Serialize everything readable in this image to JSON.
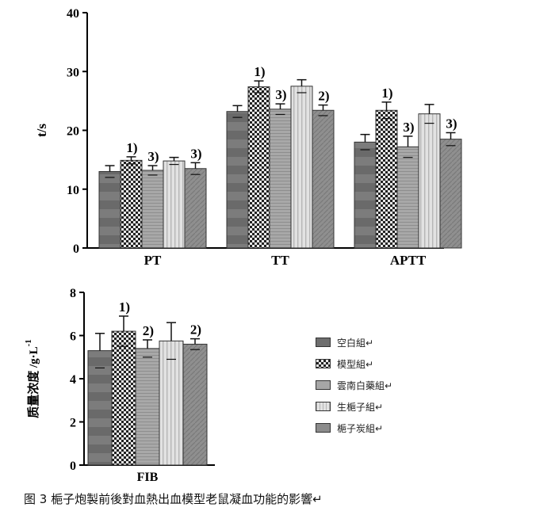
{
  "chart_data": [
    {
      "type": "bar",
      "ylabel": "t/s",
      "ylim": [
        0,
        40
      ],
      "yticks": [
        "0",
        "10",
        "20",
        "30",
        "40"
      ],
      "categories": [
        "PT",
        "TT",
        "APTT"
      ],
      "series": [
        {
          "name": "空白組",
          "values": [
            13.0,
            23.2,
            18.0
          ],
          "errors": [
            1.0,
            1.0,
            1.3
          ]
        },
        {
          "name": "模型組",
          "values": [
            14.9,
            27.4,
            23.4
          ],
          "errors": [
            0.6,
            1.0,
            1.4
          ]
        },
        {
          "name": "雲南白藥組",
          "values": [
            13.2,
            23.6,
            17.2
          ],
          "errors": [
            0.8,
            0.9,
            1.8
          ]
        },
        {
          "name": "生梔子組",
          "values": [
            14.8,
            27.5,
            22.8
          ],
          "errors": [
            0.6,
            1.1,
            1.6
          ]
        },
        {
          "name": "梔子炭組",
          "values": [
            13.5,
            23.4,
            18.5
          ],
          "errors": [
            1.0,
            0.9,
            1.1
          ]
        }
      ],
      "annotations": [
        {
          "category": "PT",
          "series": 1,
          "text": "1)"
        },
        {
          "category": "PT",
          "series": 2,
          "text": "3)"
        },
        {
          "category": "PT",
          "series": 4,
          "text": "3)"
        },
        {
          "category": "TT",
          "series": 1,
          "text": "1)"
        },
        {
          "category": "TT",
          "series": 2,
          "text": "3)"
        },
        {
          "category": "TT",
          "series": 4,
          "text": "2)"
        },
        {
          "category": "APTT",
          "series": 1,
          "text": "1)"
        },
        {
          "category": "APTT",
          "series": 2,
          "text": "3)"
        },
        {
          "category": "APTT",
          "series": 4,
          "text": "3)"
        }
      ],
      "grid": false
    },
    {
      "type": "bar",
      "ylabel": "质量浓度 /g·L",
      "ylabel_superscript": "-1",
      "ylim": [
        0,
        8
      ],
      "yticks": [
        "0",
        "2",
        "4",
        "6",
        "8"
      ],
      "categories": [
        "FIB"
      ],
      "series": [
        {
          "name": "空白組",
          "values": [
            5.3
          ],
          "errors": [
            0.8
          ]
        },
        {
          "name": "模型組",
          "values": [
            6.2
          ],
          "errors": [
            0.7
          ]
        },
        {
          "name": "雲南白藥組",
          "values": [
            5.4
          ],
          "errors": [
            0.4
          ]
        },
        {
          "name": "生梔子組",
          "values": [
            5.75
          ],
          "errors": [
            0.85
          ]
        },
        {
          "name": "梔子炭組",
          "values": [
            5.6
          ],
          "errors": [
            0.25
          ]
        }
      ],
      "annotations": [
        {
          "category": "FIB",
          "series": 1,
          "text": "1)"
        },
        {
          "category": "FIB",
          "series": 2,
          "text": "2)"
        },
        {
          "category": "FIB",
          "series": 4,
          "text": "2)"
        }
      ],
      "grid": false
    }
  ],
  "legend": {
    "placement": "right",
    "items": [
      "空白組↵",
      "模型組↵",
      "雲南白藥組↵",
      "生梔子組↵",
      "梔子炭組↵"
    ]
  },
  "caption": "图 3 梔子炮製前後對血熱出血模型老鼠凝血功能的影響↵",
  "colors": {
    "blank": "#6e6e6e",
    "model": "#3a3a3a",
    "yunnan": "#a6a6a6",
    "raw": "#d9d9d9",
    "charcoal": "#8c8c8c",
    "axis": "#000000"
  }
}
